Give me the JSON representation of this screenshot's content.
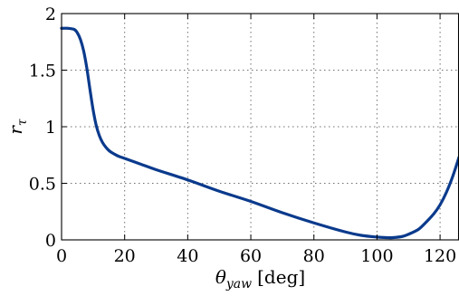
{
  "chart_data": {
    "type": "line",
    "title": "",
    "xlabel": {
      "symbol": "θ",
      "subscript": "yaw",
      "unit": "[deg]"
    },
    "ylabel": {
      "symbol": "r",
      "subscript": "τ"
    },
    "xlim": [
      0,
      126
    ],
    "ylim": [
      0,
      2
    ],
    "xticks": [
      0,
      20,
      40,
      60,
      80,
      100,
      120
    ],
    "yticks": [
      0,
      0.5,
      1,
      1.5,
      2
    ],
    "ytick_labels": [
      "0",
      "0.5",
      "1",
      "1.5",
      "2"
    ],
    "grid": true,
    "legend": "none",
    "colors": {
      "line": "#0a3a8c",
      "grid": "#6f6f6f",
      "axes": "#000000"
    },
    "series": [
      {
        "x": [
          0,
          2,
          4,
          5,
          6,
          7,
          8,
          9,
          10,
          11,
          12,
          13,
          14,
          15,
          16,
          18,
          20,
          25,
          30,
          40,
          50,
          60,
          70,
          80,
          90,
          95,
          100,
          103,
          105,
          108,
          110,
          113,
          115,
          118,
          120,
          122,
          124,
          126
        ],
        "y": [
          1.87,
          1.87,
          1.86,
          1.83,
          1.77,
          1.67,
          1.52,
          1.33,
          1.15,
          1.01,
          0.92,
          0.86,
          0.82,
          0.79,
          0.77,
          0.74,
          0.72,
          0.67,
          0.62,
          0.53,
          0.43,
          0.34,
          0.24,
          0.15,
          0.07,
          0.04,
          0.025,
          0.02,
          0.02,
          0.03,
          0.05,
          0.09,
          0.14,
          0.23,
          0.31,
          0.42,
          0.56,
          0.73
        ]
      }
    ]
  }
}
